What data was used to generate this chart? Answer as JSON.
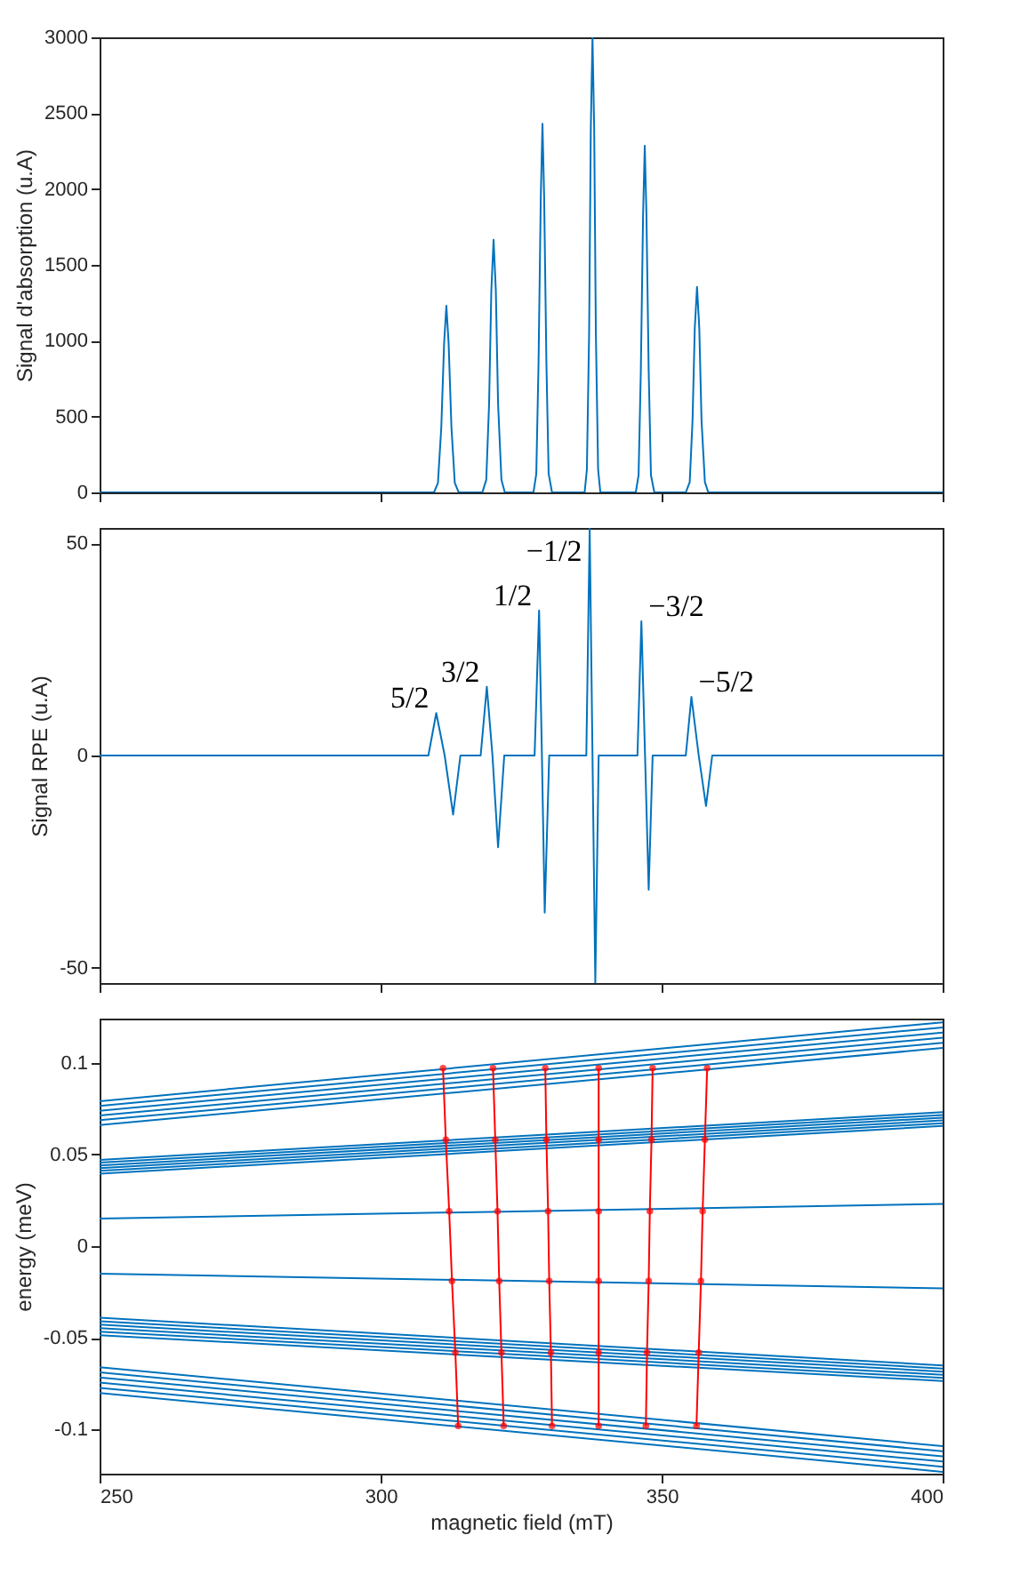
{
  "chart_data": [
    {
      "type": "line",
      "ylabel": "Signal d'absorption (u.A)",
      "xlim": [
        250,
        400
      ],
      "xticks": [
        250,
        300,
        350,
        400
      ],
      "ylim": [
        0,
        3000
      ],
      "yticks": [
        0,
        500,
        1000,
        1500,
        2000,
        2500,
        3000
      ],
      "tick_labels": "y",
      "grid": false,
      "series": [
        {
          "color": "#0072bd",
          "x": [
            250,
            309.5,
            310.2,
            310.8,
            311.3,
            311.7,
            312.1,
            312.6,
            313.2,
            313.9,
            318.1,
            318.8,
            319.3,
            319.7,
            320.1,
            320.5,
            320.9,
            321.5,
            322.1,
            327.2,
            327.7,
            328.1,
            328.5,
            328.8,
            329.1,
            329.5,
            329.9,
            330.5,
            336.3,
            336.7,
            337.1,
            337.4,
            337.7,
            338.0,
            338.3,
            338.7,
            339.1,
            345.4,
            345.9,
            346.3,
            346.7,
            347.0,
            347.3,
            347.7,
            348.1,
            348.7,
            354.3,
            355.0,
            355.5,
            355.9,
            356.3,
            356.7,
            357.1,
            357.7,
            358.3,
            400
          ],
          "values": [
            0,
            0,
            62,
            431,
            984,
            1230,
            984,
            431,
            62,
            0,
            0,
            83,
            583,
            1332,
            1665,
            1332,
            583,
            83,
            0,
            0,
            122,
            851,
            1944,
            2430,
            1944,
            851,
            122,
            0,
            0,
            150,
            1050,
            2400,
            3000,
            2400,
            1050,
            150,
            0,
            0,
            114,
            800,
            1828,
            2285,
            1828,
            800,
            114,
            0,
            0,
            68,
            474,
            1084,
            1355,
            1084,
            474,
            68,
            0,
            0
          ]
        }
      ]
    },
    {
      "type": "line",
      "ylabel": "Signal RPE (u.A)",
      "xlim": [
        250,
        400
      ],
      "xticks": [
        250,
        300,
        350,
        400
      ],
      "ylim": [
        -53.6,
        53.6
      ],
      "yticks": [
        -50,
        0,
        50
      ],
      "tick_labels": "y",
      "grid": false,
      "series": [
        {
          "color": "#0072bd",
          "x": [
            250,
            308.5,
            309.9,
            311.4,
            312.9,
            314.2,
            317.8,
            318.9,
            319.9,
            320.9,
            322.0,
            327.4,
            328.2,
            328.7,
            329.2,
            330.0,
            336.6,
            337.2,
            337.7,
            338.2,
            338.8,
            345.7,
            346.4,
            347.05,
            347.7,
            348.4,
            354.3,
            355.3,
            356.6,
            357.9,
            359.0,
            400
          ],
          "values": [
            0,
            0,
            10.0,
            0,
            -13.9,
            0,
            0,
            16.2,
            0,
            -21.6,
            0,
            0,
            34.2,
            0,
            -37.0,
            0,
            0,
            53.6,
            0,
            -53.6,
            0,
            0,
            31.6,
            0,
            -31.6,
            0,
            0,
            13.8,
            0,
            -11.9,
            0,
            0
          ]
        }
      ],
      "annotations": [
        {
          "text": "5/2",
          "x": 309.9,
          "y": 10.0
        },
        {
          "text": "3/2",
          "x": 318.9,
          "y": 16.2
        },
        {
          "text": "1/2",
          "x": 328.2,
          "y": 34.2
        },
        {
          "text": "−1/2",
          "x": 337.1,
          "y": 44.7
        },
        {
          "text": "−3/2",
          "x": 346.4,
          "y": 31.6
        },
        {
          "text": "−5/2",
          "x": 355.3,
          "y": 13.8
        }
      ]
    },
    {
      "type": "line",
      "xlabel": "magnetic field (mT)",
      "ylabel": "energy (meV)",
      "xlim": [
        250,
        400
      ],
      "xticks": [
        250,
        300,
        350,
        400
      ],
      "ylim": [
        -0.124,
        0.124
      ],
      "yticks": [
        -0.1,
        -0.05,
        0,
        0.05,
        0.1
      ],
      "grid": false,
      "x": [
        250,
        400
      ],
      "series": [
        {
          "color": "#0072bd",
          "values": [
            0.079,
            0.122
          ]
        },
        {
          "color": "#0072bd",
          "values": [
            0.0764,
            0.1192
          ]
        },
        {
          "color": "#0072bd",
          "values": [
            0.0738,
            0.1164
          ]
        },
        {
          "color": "#0072bd",
          "values": [
            0.0712,
            0.1136
          ]
        },
        {
          "color": "#0072bd",
          "values": [
            0.0686,
            0.1108
          ]
        },
        {
          "color": "#0072bd",
          "values": [
            0.066,
            0.108
          ]
        },
        {
          "color": "#0072bd",
          "values": [
            0.047,
            0.073
          ]
        },
        {
          "color": "#0072bd",
          "values": [
            0.0455,
            0.0715
          ]
        },
        {
          "color": "#0072bd",
          "values": [
            0.044,
            0.07
          ]
        },
        {
          "color": "#0072bd",
          "values": [
            0.0425,
            0.0685
          ]
        },
        {
          "color": "#0072bd",
          "values": [
            0.041,
            0.067
          ]
        },
        {
          "color": "#0072bd",
          "values": [
            0.0395,
            0.0655
          ]
        },
        {
          "color": "#0072bd",
          "values": [
            0.015,
            0.023
          ]
        },
        {
          "color": "#0072bd",
          "values": [
            -0.015,
            -0.023
          ]
        },
        {
          "color": "#0072bd",
          "values": [
            -0.039,
            -0.065
          ]
        },
        {
          "color": "#0072bd",
          "values": [
            -0.0409,
            -0.0667
          ]
        },
        {
          "color": "#0072bd",
          "values": [
            -0.0428,
            -0.0684
          ]
        },
        {
          "color": "#0072bd",
          "values": [
            -0.0447,
            -0.0701
          ]
        },
        {
          "color": "#0072bd",
          "values": [
            -0.0466,
            -0.0718
          ]
        },
        {
          "color": "#0072bd",
          "values": [
            -0.0485,
            -0.0735
          ]
        },
        {
          "color": "#0072bd",
          "values": [
            -0.066,
            -0.109
          ]
        },
        {
          "color": "#0072bd",
          "values": [
            -0.0688,
            -0.1118
          ]
        },
        {
          "color": "#0072bd",
          "values": [
            -0.0716,
            -0.1146
          ]
        },
        {
          "color": "#0072bd",
          "values": [
            -0.0744,
            -0.1174
          ]
        },
        {
          "color": "#0072bd",
          "values": [
            -0.0772,
            -0.1202
          ]
        },
        {
          "color": "#0072bd",
          "values": [
            -0.08,
            -0.123
          ]
        },
        {
          "color": "#ff0000",
          "marker": "circle",
          "x": [
            311.1,
            311.6,
            312.2,
            312.7,
            313.3,
            313.8
          ],
          "values": [
            0.097,
            0.058,
            0.019,
            -0.019,
            -0.058,
            -0.098
          ]
        },
        {
          "color": "#ff0000",
          "marker": "circle",
          "x": [
            320.0,
            320.4,
            320.8,
            321.1,
            321.5,
            321.9
          ],
          "values": [
            0.097,
            0.058,
            0.019,
            -0.019,
            -0.058,
            -0.098
          ]
        },
        {
          "color": "#ff0000",
          "marker": "circle",
          "x": [
            329.3,
            329.5,
            329.8,
            330.0,
            330.3,
            330.5
          ],
          "values": [
            0.097,
            0.058,
            0.019,
            -0.019,
            -0.058,
            -0.098
          ]
        },
        {
          "color": "#ff0000",
          "marker": "circle",
          "x": [
            338.8,
            338.8,
            338.8,
            338.8,
            338.8,
            338.8
          ],
          "values": [
            0.097,
            0.058,
            0.019,
            -0.019,
            -0.058,
            -0.098
          ]
        },
        {
          "color": "#ff0000",
          "marker": "circle",
          "x": [
            348.4,
            348.2,
            347.9,
            347.7,
            347.4,
            347.2
          ],
          "values": [
            0.097,
            0.058,
            0.019,
            -0.019,
            -0.058,
            -0.098
          ]
        },
        {
          "color": "#ff0000",
          "marker": "circle",
          "x": [
            358.1,
            357.7,
            357.3,
            357.0,
            356.6,
            356.2
          ],
          "values": [
            0.097,
            0.058,
            0.019,
            -0.019,
            -0.058,
            -0.098
          ]
        }
      ]
    }
  ]
}
